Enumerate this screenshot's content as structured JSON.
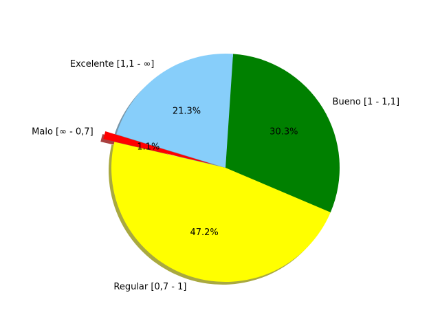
{
  "chart_data": {
    "type": "pie",
    "title": "",
    "slices": [
      {
        "label": "Bueno [1 - 1,1]",
        "value": 30.3,
        "pct_label": "30.3%",
        "color": "#008000",
        "exploded": false
      },
      {
        "label": "Excelente [1,1 - ∞]",
        "value": 21.3,
        "pct_label": "21.3%",
        "color": "#87CEFA",
        "exploded": false
      },
      {
        "label": "Malo [∞ - 0,7]",
        "value": 1.1,
        "pct_label": "1.1%",
        "color": "#FF0000",
        "exploded": true
      },
      {
        "label": "Regular [0,7 - 1]",
        "value": 47.2,
        "pct_label": "47.2%",
        "color": "#FFFF00",
        "exploded": false
      }
    ],
    "shadow": true,
    "background": "#FFFFFF"
  }
}
